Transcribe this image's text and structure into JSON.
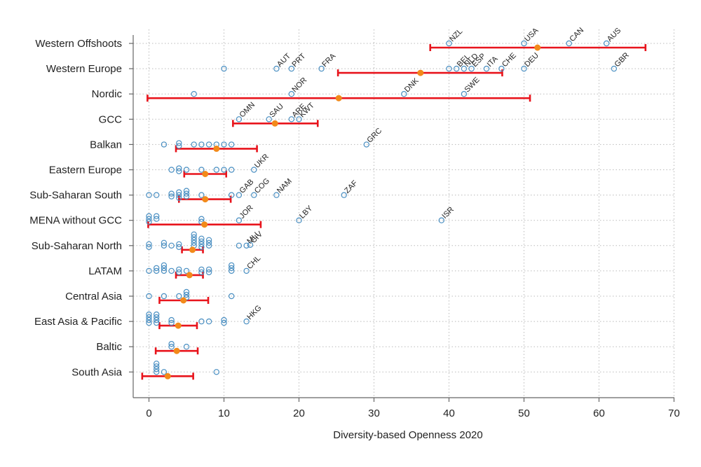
{
  "chart_data": {
    "type": "scatter",
    "xlabel": "Diversity-based Openness 2020",
    "ylabel": "",
    "xlim": [
      -2,
      70
    ],
    "xticks": [
      0,
      10,
      20,
      30,
      40,
      50,
      60,
      70
    ],
    "grid": true,
    "colors": {
      "points": "#4a8fc2",
      "mean": "#f28a1a",
      "interval": "#e8141c",
      "grid": "#bbbbbb",
      "axis": "#666666"
    },
    "categories": [
      "Western Offshoots",
      "Western Europe",
      "Nordic",
      "GCC",
      "Balkan",
      "Eastern Europe",
      "Sub-Saharan South",
      "MENA without GCC",
      "Sub-Saharan North",
      "LATAM",
      "Central Asia",
      "East Asia & Pacific",
      "Baltic",
      "South Asia"
    ],
    "groups": [
      {
        "region": "Western Offshoots",
        "mean": 51.8,
        "ci": [
          37.5,
          66.2
        ],
        "points": [
          {
            "x": 40,
            "dy": 0,
            "label": "NZL"
          },
          {
            "x": 50,
            "dy": 0,
            "label": "USA"
          },
          {
            "x": 56,
            "dy": 0,
            "label": "CAN"
          },
          {
            "x": 61,
            "dy": 0,
            "label": "AUS"
          }
        ]
      },
      {
        "region": "Western Europe",
        "mean": 36.2,
        "ci": [
          25.2,
          47.1
        ],
        "points": [
          {
            "x": 10,
            "dy": 0
          },
          {
            "x": 17,
            "dy": 0,
            "label": "AUT"
          },
          {
            "x": 19,
            "dy": 0,
            "label": "PRT"
          },
          {
            "x": 23,
            "dy": 0,
            "label": "FRA"
          },
          {
            "x": 40,
            "dy": 0
          },
          {
            "x": 41,
            "dy": 0,
            "label": "BEL"
          },
          {
            "x": 42,
            "dy": 0,
            "label": "NLD"
          },
          {
            "x": 43,
            "dy": 0,
            "label": "ESP"
          },
          {
            "x": 45,
            "dy": 0,
            "label": "ITA"
          },
          {
            "x": 47,
            "dy": 0,
            "label": "CHE"
          },
          {
            "x": 50,
            "dy": 0,
            "label": "DEU"
          },
          {
            "x": 62,
            "dy": 0,
            "label": "GBR"
          }
        ]
      },
      {
        "region": "Nordic",
        "mean": 25.3,
        "ci": [
          -0.2,
          50.8
        ],
        "points": [
          {
            "x": 6,
            "dy": 0
          },
          {
            "x": 19,
            "dy": 0,
            "label": "NOR"
          },
          {
            "x": 34,
            "dy": 0,
            "label": "DNK"
          },
          {
            "x": 42,
            "dy": 0,
            "label": "SWE"
          }
        ]
      },
      {
        "region": "GCC",
        "mean": 16.8,
        "ci": [
          11.2,
          22.5
        ],
        "points": [
          {
            "x": 12,
            "dy": 0,
            "label": "OMN"
          },
          {
            "x": 16,
            "dy": 0,
            "label": "SAU"
          },
          {
            "x": 19,
            "dy": 0,
            "label": "ARE"
          },
          {
            "x": 20,
            "dy": 0,
            "label": "KWT"
          }
        ]
      },
      {
        "region": "Balkan",
        "mean": 9.0,
        "ci": [
          3.6,
          14.4
        ],
        "points": [
          {
            "x": 2,
            "dy": 0
          },
          {
            "x": 4,
            "dy": -2
          },
          {
            "x": 4,
            "dy": 2
          },
          {
            "x": 6,
            "dy": 0
          },
          {
            "x": 7,
            "dy": 0
          },
          {
            "x": 8,
            "dy": 0
          },
          {
            "x": 9,
            "dy": 0
          },
          {
            "x": 10,
            "dy": 0
          },
          {
            "x": 11,
            "dy": 0
          },
          {
            "x": 29,
            "dy": 0,
            "label": "GRC"
          }
        ]
      },
      {
        "region": "Eastern Europe",
        "mean": 7.5,
        "ci": [
          4.7,
          10.3
        ],
        "points": [
          {
            "x": 3,
            "dy": 0
          },
          {
            "x": 4,
            "dy": -2
          },
          {
            "x": 4,
            "dy": 2
          },
          {
            "x": 5,
            "dy": 0
          },
          {
            "x": 7,
            "dy": 0
          },
          {
            "x": 9,
            "dy": 0
          },
          {
            "x": 10,
            "dy": 0
          },
          {
            "x": 11,
            "dy": 0
          },
          {
            "x": 14,
            "dy": 0,
            "label": "UKR"
          }
        ]
      },
      {
        "region": "Sub-Saharan South",
        "mean": 7.5,
        "ci": [
          4.0,
          10.9
        ],
        "points": [
          {
            "x": 0,
            "dy": 0
          },
          {
            "x": 1,
            "dy": 0
          },
          {
            "x": 3,
            "dy": -2
          },
          {
            "x": 3,
            "dy": 2
          },
          {
            "x": 4,
            "dy": -4
          },
          {
            "x": 4,
            "dy": 0
          },
          {
            "x": 4,
            "dy": 4
          },
          {
            "x": 5,
            "dy": -6
          },
          {
            "x": 5,
            "dy": -2
          },
          {
            "x": 5,
            "dy": 2
          },
          {
            "x": 7,
            "dy": 0
          },
          {
            "x": 11,
            "dy": 0
          },
          {
            "x": 12,
            "dy": 0,
            "label": "GAB"
          },
          {
            "x": 14,
            "dy": 0,
            "label": "COG"
          },
          {
            "x": 17,
            "dy": 0,
            "label": "NAM"
          },
          {
            "x": 26,
            "dy": 0,
            "label": "ZAF"
          }
        ]
      },
      {
        "region": "MENA without GCC",
        "mean": 7.4,
        "ci": [
          -0.1,
          14.9
        ],
        "points": [
          {
            "x": 0,
            "dy": -6
          },
          {
            "x": 0,
            "dy": -2
          },
          {
            "x": 0,
            "dy": 2
          },
          {
            "x": 1,
            "dy": -6
          },
          {
            "x": 1,
            "dy": -2
          },
          {
            "x": 7,
            "dy": -2
          },
          {
            "x": 7,
            "dy": 2
          },
          {
            "x": 12,
            "dy": 0,
            "label": "JOR"
          },
          {
            "x": 20,
            "dy": 0,
            "label": "LBY"
          },
          {
            "x": 39,
            "dy": 0,
            "label": "ISR"
          }
        ]
      },
      {
        "region": "Sub-Saharan North",
        "mean": 5.8,
        "ci": [
          4.4,
          7.2
        ],
        "points": [
          {
            "x": 0,
            "dy": -2
          },
          {
            "x": 0,
            "dy": 2
          },
          {
            "x": 2,
            "dy": -4
          },
          {
            "x": 2,
            "dy": 0
          },
          {
            "x": 3,
            "dy": 0
          },
          {
            "x": 4,
            "dy": -2
          },
          {
            "x": 4,
            "dy": 2
          },
          {
            "x": 6,
            "dy": -16
          },
          {
            "x": 6,
            "dy": -12
          },
          {
            "x": 6,
            "dy": -8
          },
          {
            "x": 6,
            "dy": -4
          },
          {
            "x": 6,
            "dy": 0
          },
          {
            "x": 7,
            "dy": -10
          },
          {
            "x": 7,
            "dy": -6
          },
          {
            "x": 7,
            "dy": -2
          },
          {
            "x": 7,
            "dy": 2
          },
          {
            "x": 8,
            "dy": -8
          },
          {
            "x": 8,
            "dy": -4
          },
          {
            "x": 8,
            "dy": 0
          },
          {
            "x": 12,
            "dy": 0
          },
          {
            "x": 13,
            "dy": 0,
            "label": "MLI"
          },
          {
            "x": 13.5,
            "dy": -1,
            "label": "CIV"
          }
        ]
      },
      {
        "region": "LATAM",
        "mean": 5.4,
        "ci": [
          3.6,
          7.2
        ],
        "points": [
          {
            "x": 0,
            "dy": 0
          },
          {
            "x": 1,
            "dy": -4
          },
          {
            "x": 1,
            "dy": 0
          },
          {
            "x": 2,
            "dy": -8
          },
          {
            "x": 2,
            "dy": -4
          },
          {
            "x": 2,
            "dy": 0
          },
          {
            "x": 3,
            "dy": 0
          },
          {
            "x": 4,
            "dy": -2
          },
          {
            "x": 4,
            "dy": 2
          },
          {
            "x": 5,
            "dy": 0
          },
          {
            "x": 7,
            "dy": -2
          },
          {
            "x": 7,
            "dy": 2
          },
          {
            "x": 8,
            "dy": -2
          },
          {
            "x": 8,
            "dy": 2
          },
          {
            "x": 11,
            "dy": -8
          },
          {
            "x": 11,
            "dy": -4
          },
          {
            "x": 11,
            "dy": 0
          },
          {
            "x": 13,
            "dy": 0,
            "label": "CHL"
          }
        ]
      },
      {
        "region": "Central Asia",
        "mean": 4.6,
        "ci": [
          1.4,
          7.9
        ],
        "points": [
          {
            "x": 0,
            "dy": 0
          },
          {
            "x": 2,
            "dy": 0
          },
          {
            "x": 4,
            "dy": 0
          },
          {
            "x": 5,
            "dy": -6
          },
          {
            "x": 5,
            "dy": -2
          },
          {
            "x": 5,
            "dy": 2
          },
          {
            "x": 11,
            "dy": 0
          }
        ]
      },
      {
        "region": "East Asia & Pacific",
        "mean": 3.9,
        "ci": [
          1.4,
          6.4
        ],
        "points": [
          {
            "x": 0,
            "dy": -10
          },
          {
            "x": 0,
            "dy": -6
          },
          {
            "x": 0,
            "dy": -2
          },
          {
            "x": 0,
            "dy": 2
          },
          {
            "x": 1,
            "dy": -10
          },
          {
            "x": 1,
            "dy": -6
          },
          {
            "x": 1,
            "dy": -2
          },
          {
            "x": 1,
            "dy": 2
          },
          {
            "x": 3,
            "dy": -2
          },
          {
            "x": 3,
            "dy": 2
          },
          {
            "x": 7,
            "dy": 0
          },
          {
            "x": 8,
            "dy": 0
          },
          {
            "x": 10,
            "dy": -2
          },
          {
            "x": 10,
            "dy": 2
          },
          {
            "x": 13,
            "dy": 0,
            "label": "HKG"
          }
        ]
      },
      {
        "region": "Baltic",
        "mean": 3.7,
        "ci": [
          0.9,
          6.5
        ],
        "points": [
          {
            "x": 3,
            "dy": -4
          },
          {
            "x": 3,
            "dy": 0
          },
          {
            "x": 5,
            "dy": 0
          }
        ]
      },
      {
        "region": "South Asia",
        "mean": 2.5,
        "ci": [
          -0.9,
          5.9
        ],
        "points": [
          {
            "x": 1,
            "dy": -12
          },
          {
            "x": 1,
            "dy": -8
          },
          {
            "x": 1,
            "dy": -4
          },
          {
            "x": 1,
            "dy": 0
          },
          {
            "x": 2,
            "dy": 0
          },
          {
            "x": 9,
            "dy": 0
          }
        ]
      }
    ]
  }
}
